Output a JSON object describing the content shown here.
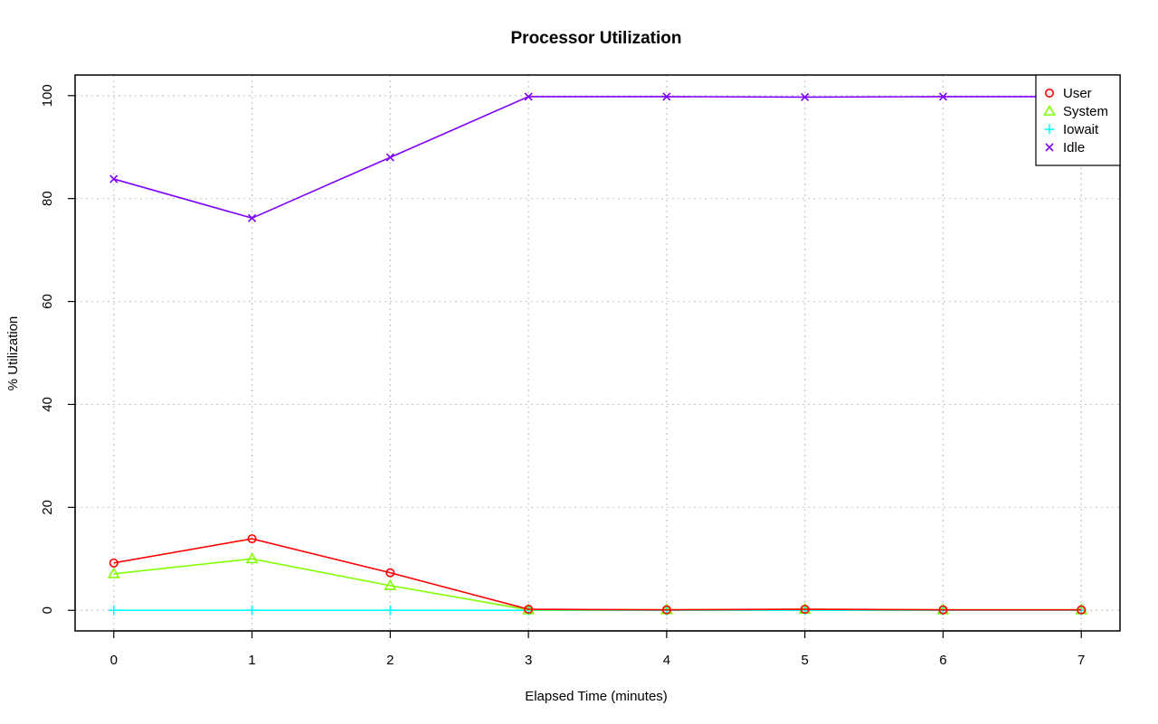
{
  "chart_data": {
    "type": "line",
    "title": "Processor Utilization",
    "xlabel": "Elapsed Time (minutes)",
    "ylabel": "% Utilization",
    "x": [
      0,
      1,
      2,
      3,
      4,
      5,
      6,
      7
    ],
    "xlim": [
      -0.28,
      7.28
    ],
    "ylim": [
      -4,
      104
    ],
    "xticks": [
      0,
      1,
      2,
      3,
      4,
      5,
      6,
      7
    ],
    "yticks": [
      0,
      20,
      40,
      60,
      80,
      100
    ],
    "grid": true,
    "legend_position": "top-right",
    "series": [
      {
        "name": "User",
        "color": "#ff0000",
        "marker": "circle",
        "values": [
          9.2,
          13.9,
          7.3,
          0.2,
          0.1,
          0.2,
          0.1,
          0.1
        ]
      },
      {
        "name": "System",
        "color": "#80ff00",
        "marker": "triangle",
        "values": [
          7.1,
          10.0,
          4.8,
          0.1,
          0.1,
          0.2,
          0.1,
          0.1
        ]
      },
      {
        "name": "Iowait",
        "color": "#00ffff",
        "marker": "plus",
        "values": [
          0,
          0,
          0,
          0,
          0,
          0,
          0,
          0
        ]
      },
      {
        "name": "Idle",
        "color": "#8000ff",
        "marker": "x",
        "values": [
          83.8,
          76.2,
          88.0,
          99.8,
          99.8,
          99.7,
          99.8,
          99.8
        ]
      }
    ]
  }
}
